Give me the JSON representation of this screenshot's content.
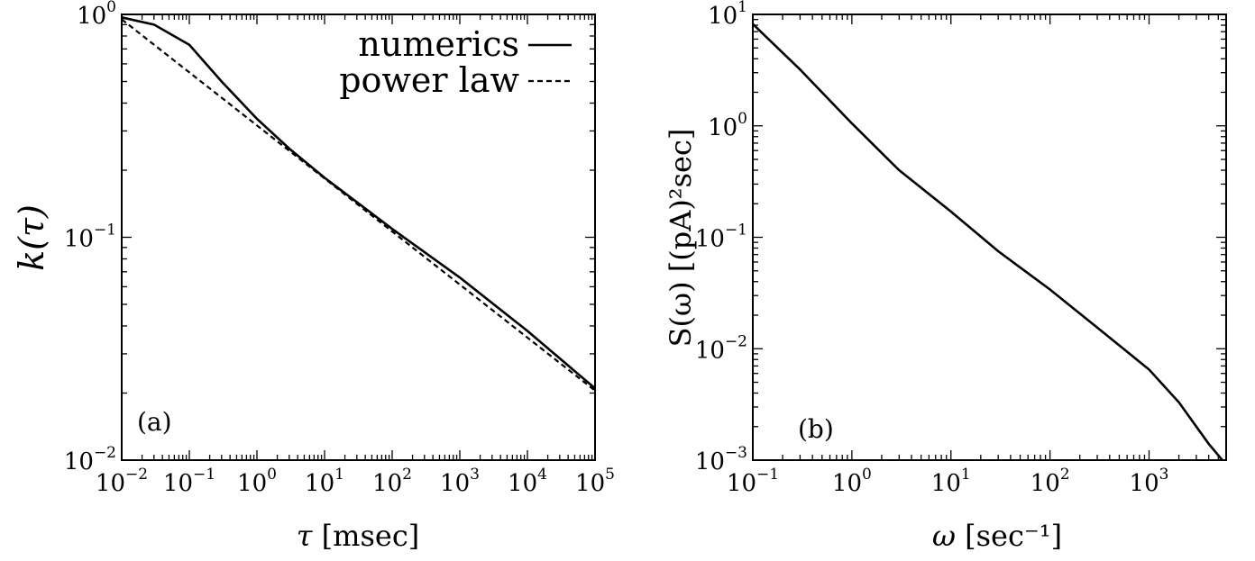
{
  "chart_data": [
    {
      "type": "line",
      "panel_tag": "(a)",
      "xlabel": "τ [msec]",
      "ylabel": "k(τ)",
      "xscale": "log",
      "yscale": "log",
      "xlim": [
        0.01,
        100000
      ],
      "ylim": [
        0.01,
        1
      ],
      "x_tick_exponents": [
        "-2",
        "-1",
        "0",
        "1",
        "2",
        "3",
        "4",
        "5"
      ],
      "y_tick_exponents": [
        "-2",
        "-1",
        "0"
      ],
      "tick_base": "10",
      "legend_position": "top-right",
      "series": [
        {
          "name": "numerics",
          "style": "solid",
          "x": [
            0.01,
            0.03,
            0.1,
            0.3,
            1,
            3,
            10,
            100,
            1000,
            10000,
            100000
          ],
          "y": [
            0.97,
            0.9,
            0.73,
            0.5,
            0.34,
            0.25,
            0.185,
            0.109,
            0.066,
            0.038,
            0.021
          ]
        },
        {
          "name": "power law",
          "style": "dashed",
          "x": [
            0.01,
            100000
          ],
          "y": [
            0.95,
            0.0205
          ]
        }
      ]
    },
    {
      "type": "line",
      "panel_tag": "(b)",
      "xlabel": "ω [sec⁻¹]",
      "ylabel": "S(ω) [(pA)²sec]",
      "xscale": "log",
      "yscale": "log",
      "xlim": [
        0.1,
        6000
      ],
      "ylim": [
        0.001,
        10
      ],
      "x_tick_exponents": [
        "-1",
        "0",
        "1",
        "2",
        "3"
      ],
      "y_tick_exponents": [
        "-3",
        "-2",
        "-1",
        "0",
        "1"
      ],
      "tick_base": "10",
      "series": [
        {
          "style": "solid",
          "x": [
            0.1,
            0.3,
            1,
            3,
            10,
            30,
            100,
            300,
            1000,
            2000,
            3000,
            4000,
            5500
          ],
          "y": [
            8.2,
            3.2,
            1.05,
            0.4,
            0.17,
            0.075,
            0.034,
            0.0155,
            0.0065,
            0.0033,
            0.002,
            0.0014,
            0.001
          ]
        }
      ]
    }
  ]
}
